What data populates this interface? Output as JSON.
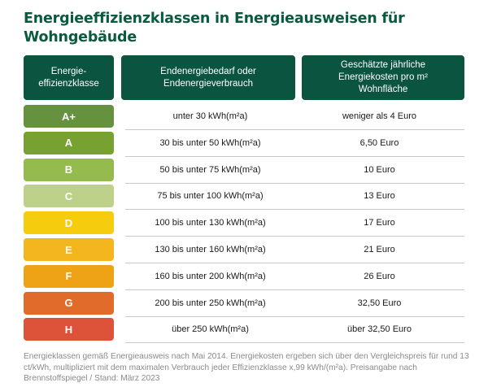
{
  "title": "Energieeffizienzklassen in Energieausweisen für Wohngebäude",
  "table": {
    "headers": [
      "Energie-\neffizienzklasse",
      "Endenergiebedarf oder\nEndenergieverbrauch",
      "Geschätzte jährliche\nEnergiekosten pro m²\nWohnfläche"
    ],
    "header_color": "#0a5440",
    "rows": [
      {
        "class": "A+",
        "color": "#66913f",
        "energy": "unter 30 kWh(m²a)",
        "cost": "weniger als 4 Euro"
      },
      {
        "class": "A",
        "color": "#77a232",
        "energy": "30 bis unter 50 kWh(m²a)",
        "cost": "6,50 Euro"
      },
      {
        "class": "B",
        "color": "#95ba4e",
        "energy": "50 bis unter 75 kWh(m²a)",
        "cost": "10 Euro"
      },
      {
        "class": "C",
        "color": "#bdd18a",
        "energy": "75 bis unter 100 kWh(m²a)",
        "cost": "13 Euro"
      },
      {
        "class": "D",
        "color": "#f5cc0e",
        "energy": "100 bis unter 130 kWh(m²a)",
        "cost": "17 Euro"
      },
      {
        "class": "E",
        "color": "#f3b61e",
        "energy": "130 bis unter 160 kWh(m²a)",
        "cost": "21 Euro"
      },
      {
        "class": "F",
        "color": "#eea216",
        "energy": "160 bis unter 200 kWh(m²a)",
        "cost": "26 Euro"
      },
      {
        "class": "G",
        "color": "#e06b2b",
        "energy": "200 bis unter 250 kWh(m²a)",
        "cost": "32,50 Euro"
      },
      {
        "class": "H",
        "color": "#dd533a",
        "energy": "über 250 kWh(m²a)",
        "cost": "über 32,50 Euro"
      }
    ]
  },
  "footer": "Energieklassen gemäß Energieausweis nach Mai 2014. Energiekosten ergeben sich über den Vergleichspreis für rund 13 ct/kWh, multipliziert mit dem maximalen Verbrauch jeder Effizienzklasse x,99 kWh/(m²a). Preisangabe nach Brennstoffspiegel  /  Stand: März 2023"
}
